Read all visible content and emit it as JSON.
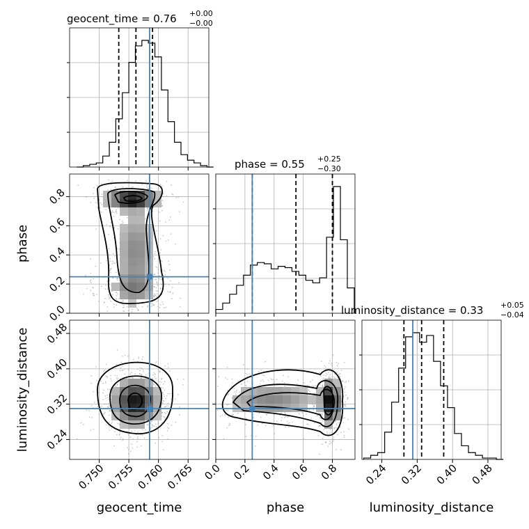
{
  "colors": {
    "truth": "#4682b4",
    "hist": "#000000",
    "grid": "#b0b0b0"
  },
  "chart_data": {
    "type": "corner",
    "parameters": [
      "geocent_time",
      "phase",
      "luminosity_distance"
    ],
    "truths": {
      "geocent_time": 0.7585,
      "phase": 0.25,
      "luminosity_distance": 0.31
    },
    "quantiles": {
      "geocent_time": [
        0.7533,
        0.7562,
        0.759
      ],
      "phase": [
        0.25,
        0.55,
        0.8
      ],
      "luminosity_distance": [
        0.29,
        0.33,
        0.38
      ]
    },
    "titles": {
      "geocent_time": {
        "base": "geocent_time = 0.76",
        "plus": "+0.00",
        "minus": "−0.00"
      },
      "phase": {
        "base": "phase = 0.55",
        "plus": "+0.25",
        "minus": "−0.30"
      },
      "luminosity_distance": {
        "base": "luminosity_distance = 0.33",
        "plus": "+0.05",
        "minus": "−0.04"
      }
    },
    "ranges": {
      "geocent_time": [
        0.745,
        0.7685
      ],
      "phase": [
        0.0,
        0.955
      ],
      "luminosity_distance": [
        0.195,
        0.51
      ]
    },
    "ticks": {
      "geocent_time": [
        0.75,
        0.755,
        0.76,
        0.765
      ],
      "phase": [
        0.0,
        0.2,
        0.4,
        0.6,
        0.8
      ],
      "luminosity_distance": [
        0.24,
        0.32,
        0.4,
        0.48
      ]
    },
    "tick_labels": {
      "geocent_time": [
        "0.750",
        "0.755",
        "0.760",
        "0.765"
      ],
      "phase": [
        "0.0",
        "0.2",
        "0.4",
        "0.6",
        "0.8"
      ],
      "luminosity_distance": [
        "0.24",
        "0.32",
        "0.40",
        "0.48"
      ]
    },
    "axis_labels": {
      "geocent_time": "geocent_time",
      "phase": "phase",
      "luminosity_distance": "luminosity_distance"
    },
    "histograms": {
      "geocent_time": {
        "edges_start": 0.7462,
        "bin_width": 0.0011,
        "counts": [
          0,
          1,
          2,
          3,
          8,
          18,
          35,
          54,
          76,
          88,
          92,
          90,
          80,
          56,
          33,
          18,
          9,
          5,
          3,
          1,
          0
        ]
      },
      "phase": {
        "edges_start": 0.0,
        "bin_width": 0.0475,
        "counts": [
          3,
          8,
          15,
          22,
          30,
          38,
          40,
          39,
          35,
          37,
          36,
          33,
          30,
          26,
          24,
          28,
          60,
          100,
          58,
          20
        ]
      },
      "luminosity_distance": {
        "edges_start": 0.199,
        "bin_width": 0.0158,
        "counts": [
          1,
          3,
          5,
          20,
          42,
          67,
          90,
          93,
          86,
          91,
          72,
          54,
          38,
          19,
          10,
          5,
          3,
          1,
          1,
          0
        ]
      }
    },
    "grid": true
  }
}
